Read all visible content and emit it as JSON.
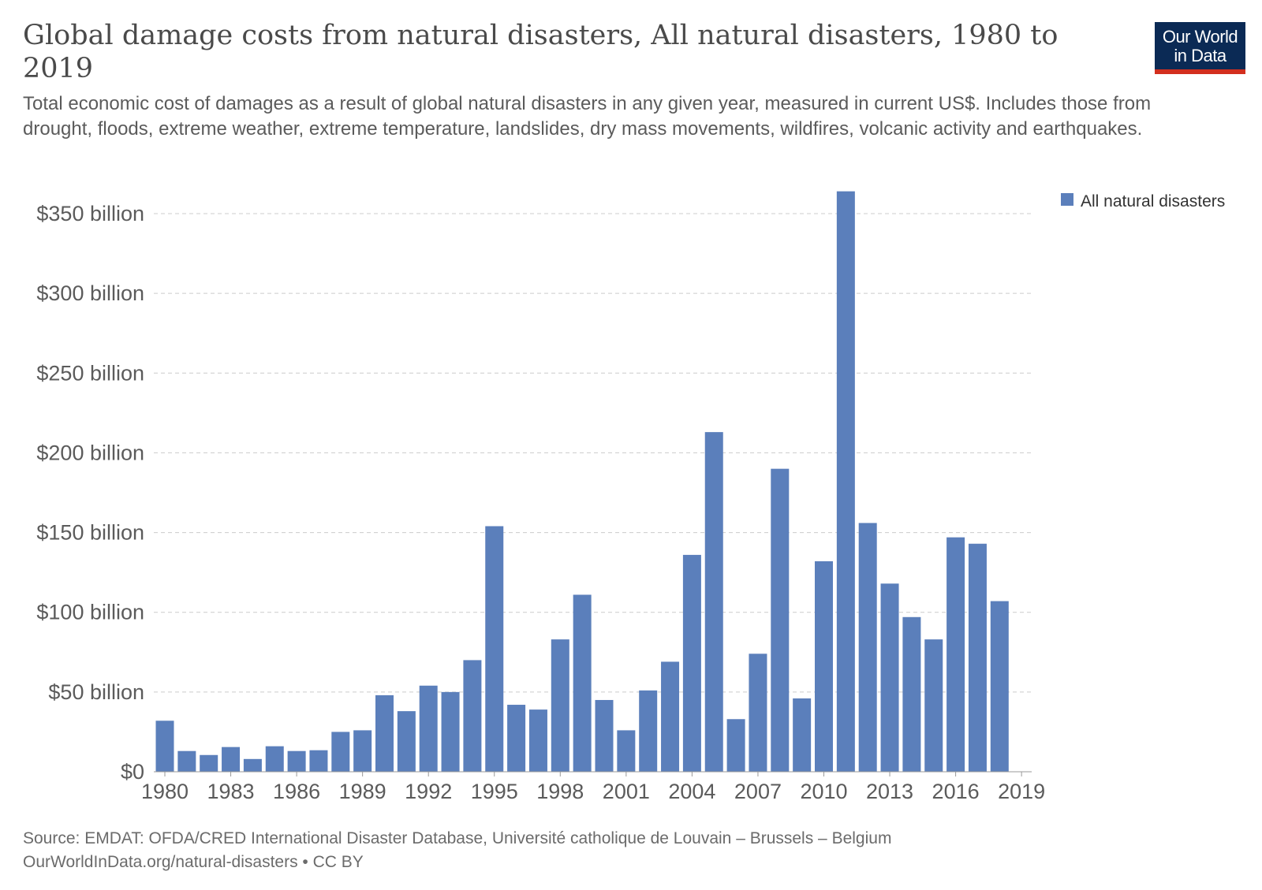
{
  "title": "Global damage costs from natural disasters, All natural disasters, 1980 to 2019",
  "subtitle": "Total economic cost of damages as a result of global natural disasters in any given year, measured in current US$. Includes those from drought, floods, extreme weather, extreme temperature, landslides, dry mass movements, wildfires, volcanic activity and earthquakes.",
  "logo": {
    "line1": "Our World",
    "line2": "in Data",
    "bg": "#0b2a55",
    "accent": "#d32f1e"
  },
  "footer": {
    "source": "Source: EMDAT: OFDA/CRED International Disaster Database, Université catholique de Louvain – Brussels – Belgium",
    "credit": "OurWorldInData.org/natural-disasters • CC BY"
  },
  "chart_data": {
    "type": "bar",
    "title": "Global damage costs from natural disasters, All natural disasters, 1980 to 2019",
    "xlabel": "",
    "ylabel": "",
    "unit": "billion current US$",
    "ylim": [
      0,
      350
    ],
    "grid": true,
    "legend_position": "top-right",
    "yticks": [
      0,
      50,
      100,
      150,
      200,
      250,
      300,
      350
    ],
    "ytick_labels": [
      "$0",
      "$50 billion",
      "$100 billion",
      "$150 billion",
      "$200 billion",
      "$250 billion",
      "$300 billion",
      "$350 billion"
    ],
    "xtick_labels": [
      "1980",
      "1983",
      "1986",
      "1989",
      "1992",
      "1995",
      "1998",
      "2001",
      "2004",
      "2007",
      "2010",
      "2013",
      "2016",
      "2019"
    ],
    "color": "#5b7fbb",
    "series": [
      {
        "name": "All natural disasters",
        "x": [
          1980,
          1981,
          1982,
          1983,
          1984,
          1985,
          1986,
          1987,
          1988,
          1989,
          1990,
          1991,
          1992,
          1993,
          1994,
          1995,
          1996,
          1997,
          1998,
          1999,
          2000,
          2001,
          2002,
          2003,
          2004,
          2005,
          2006,
          2007,
          2008,
          2009,
          2010,
          2011,
          2012,
          2013,
          2014,
          2015,
          2016,
          2017,
          2018
        ],
        "values": [
          32,
          13,
          10.5,
          15.5,
          8,
          16,
          13,
          13.5,
          25,
          26,
          48,
          38,
          54,
          50,
          70,
          154,
          42,
          39,
          83,
          111,
          45,
          26,
          51,
          69,
          136,
          213,
          33,
          74,
          190,
          46,
          132,
          364,
          156,
          118,
          97,
          83,
          147,
          143,
          107
        ]
      }
    ]
  }
}
